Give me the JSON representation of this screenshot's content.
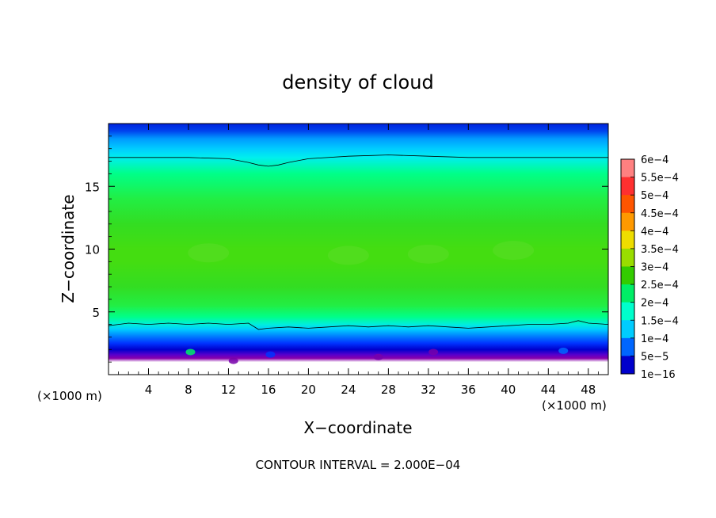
{
  "chart_data": {
    "type": "heatmap",
    "title": "density of cloud",
    "xlabel": "X−coordinate",
    "ylabel": "Z−coordinate",
    "x_unit_left": "(×1000 m)",
    "x_unit_right": "(×1000 m)",
    "xlim": [
      0,
      50
    ],
    "ylim": [
      0,
      20
    ],
    "x_ticks": [
      4,
      8,
      12,
      16,
      20,
      24,
      28,
      32,
      36,
      40,
      44,
      48
    ],
    "x_tick_labels": [
      "4",
      "8",
      "12",
      "16",
      "20",
      "24",
      "28",
      "32",
      "36",
      "40",
      "44",
      "48"
    ],
    "y_ticks": [
      5,
      10,
      15
    ],
    "y_tick_labels": [
      "5",
      "10",
      "15"
    ],
    "footnote": "CONTOUR INTERVAL = 2.000E−04",
    "colorbar": {
      "labels": [
        "6e−4",
        "5.5e−4",
        "5e−4",
        "4.5e−4",
        "4e−4",
        "3.5e−4",
        "3e−4",
        "2.5e−4",
        "2e−4",
        "1.5e−4",
        "1e−4",
        "5e−5",
        "1e−16"
      ],
      "colors": [
        "#ff8080",
        "#ff3030",
        "#ff5500",
        "#ff9900",
        "#eedd00",
        "#99dd00",
        "#33cc00",
        "#00ee66",
        "#00ffcc",
        "#00ccff",
        "#0066ff",
        "#0000cc",
        "#7700aa"
      ]
    },
    "field_profile": {
      "z": [
        0.0,
        1.0,
        1.3,
        1.6,
        2.0,
        2.5,
        3.0,
        3.6,
        4.0,
        4.6,
        5.5,
        7.0,
        9.0,
        10.0,
        12.0,
        14.0,
        16.0,
        17.3,
        18.0,
        18.8,
        19.4,
        20.0
      ],
      "color": [
        "#ffffff",
        "#ffffff",
        "#8800aa",
        "#5500cc",
        "#0000cc",
        "#0033ff",
        "#0077ff",
        "#00ccff",
        "#00eedd",
        "#00ff88",
        "#22ee44",
        "#33dd22",
        "#44dd11",
        "#44dd11",
        "#33dd22",
        "#22ee44",
        "#00ff88",
        "#00eeee",
        "#00ccff",
        "#0099ff",
        "#0044ee",
        "#0022dd"
      ]
    },
    "contour_upper": {
      "x": [
        0,
        4,
        8,
        12,
        14,
        15,
        16,
        17,
        18,
        20,
        24,
        28,
        32,
        36,
        40,
        44,
        48,
        50
      ],
      "z": [
        17.3,
        17.3,
        17.3,
        17.2,
        16.9,
        16.7,
        16.6,
        16.7,
        16.9,
        17.2,
        17.4,
        17.5,
        17.4,
        17.3,
        17.3,
        17.3,
        17.3,
        17.3
      ]
    },
    "contour_lower": {
      "x": [
        0,
        1,
        2,
        4,
        6,
        8,
        10,
        12,
        14,
        15,
        16,
        18,
        20,
        22,
        24,
        26,
        28,
        30,
        32,
        34,
        36,
        38,
        40,
        42,
        44,
        46,
        47,
        48,
        50
      ],
      "z": [
        3.9,
        4.0,
        4.1,
        4.0,
        4.1,
        4.0,
        4.1,
        4.0,
        4.1,
        3.6,
        3.7,
        3.8,
        3.7,
        3.8,
        3.9,
        3.8,
        3.9,
        3.8,
        3.9,
        3.8,
        3.7,
        3.8,
        3.9,
        4.0,
        4.0,
        4.1,
        4.3,
        4.1,
        4.0
      ]
    }
  }
}
